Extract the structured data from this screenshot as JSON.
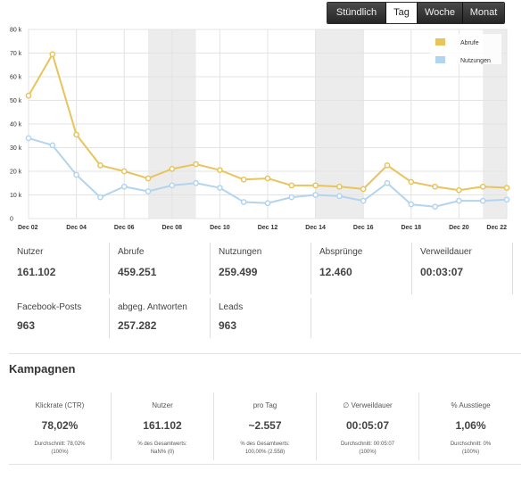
{
  "period_tabs": [
    {
      "label": "Stündlich",
      "active": false
    },
    {
      "label": "Tag",
      "active": true
    },
    {
      "label": "Woche",
      "active": false
    },
    {
      "label": "Monat",
      "active": false
    }
  ],
  "chart_data": {
    "type": "line",
    "x_ticks": [
      "Dec 02",
      "Dec 04",
      "Dec 06",
      "Dec 08",
      "Dec 10",
      "Dec 12",
      "Dec 14",
      "Dec 16",
      "Dec 18",
      "Dec 20",
      "Dec 22"
    ],
    "x_dates": [
      2,
      3,
      4,
      5,
      6,
      7,
      8,
      9,
      10,
      11,
      12,
      13,
      14,
      15,
      16,
      17,
      18,
      19,
      20,
      21,
      22
    ],
    "y_ticks": [
      "0",
      "10 k",
      "20 k",
      "30 k",
      "40 k",
      "50 k",
      "60 k",
      "70 k",
      "80 k"
    ],
    "ylim": [
      0,
      80000
    ],
    "grid": true,
    "legend_position": "top-right",
    "weekend_shading": [
      [
        7,
        9
      ],
      [
        14,
        16
      ],
      [
        21,
        22
      ]
    ],
    "series": [
      {
        "name": "Abrufe",
        "color": "#e8c45c",
        "values": [
          52000,
          69500,
          35500,
          22500,
          20000,
          17000,
          21000,
          23000,
          20500,
          16500,
          17000,
          14000,
          14000,
          13500,
          12500,
          22500,
          15500,
          13500,
          12000,
          13500,
          13000
        ]
      },
      {
        "name": "Nutzungen",
        "color": "#b3d4ee",
        "values": [
          34000,
          31000,
          18500,
          9000,
          13500,
          11500,
          14000,
          15000,
          13000,
          7000,
          6500,
          9000,
          10000,
          9500,
          7500,
          15000,
          6000,
          5000,
          7500,
          7500,
          8000
        ]
      }
    ]
  },
  "stats_row1": [
    {
      "label": "Nutzer",
      "value": "161.102"
    },
    {
      "label": "Abrufe",
      "value": "459.251"
    },
    {
      "label": "Nutzungen",
      "value": "259.499"
    },
    {
      "label": "Absprünge",
      "value": "12.460"
    },
    {
      "label": "Verweildauer",
      "value": "00:03:07"
    }
  ],
  "stats_row2": [
    {
      "label": "Facebook-Posts",
      "value": "963"
    },
    {
      "label": "abgeg. Antworten",
      "value": "257.282"
    },
    {
      "label": "Leads",
      "value": "963"
    }
  ],
  "campaigns_title": "Kampagnen",
  "campaigns": [
    {
      "label": "Klickrate (CTR)",
      "value": "78,02%",
      "note1": "Durchschnitt: 78,02%",
      "note2": "(100%)"
    },
    {
      "label": "Nutzer",
      "value": "161.102",
      "note1": "% des Gesamtwerts:",
      "note2": "NaN% (0)"
    },
    {
      "label": "pro Tag",
      "value": "~2.557",
      "note1": "% des Gesamtwerts:",
      "note2": "100,00% (2.558)"
    },
    {
      "label": "∅ Verweildauer",
      "value": "00:05:07",
      "note1": "Durchschnitt: 00:05:07",
      "note2": "(100%)"
    },
    {
      "label": "% Ausstiege",
      "value": "1,06%",
      "note1": "Durchschnitt: 0%",
      "note2": "(100%)"
    }
  ]
}
